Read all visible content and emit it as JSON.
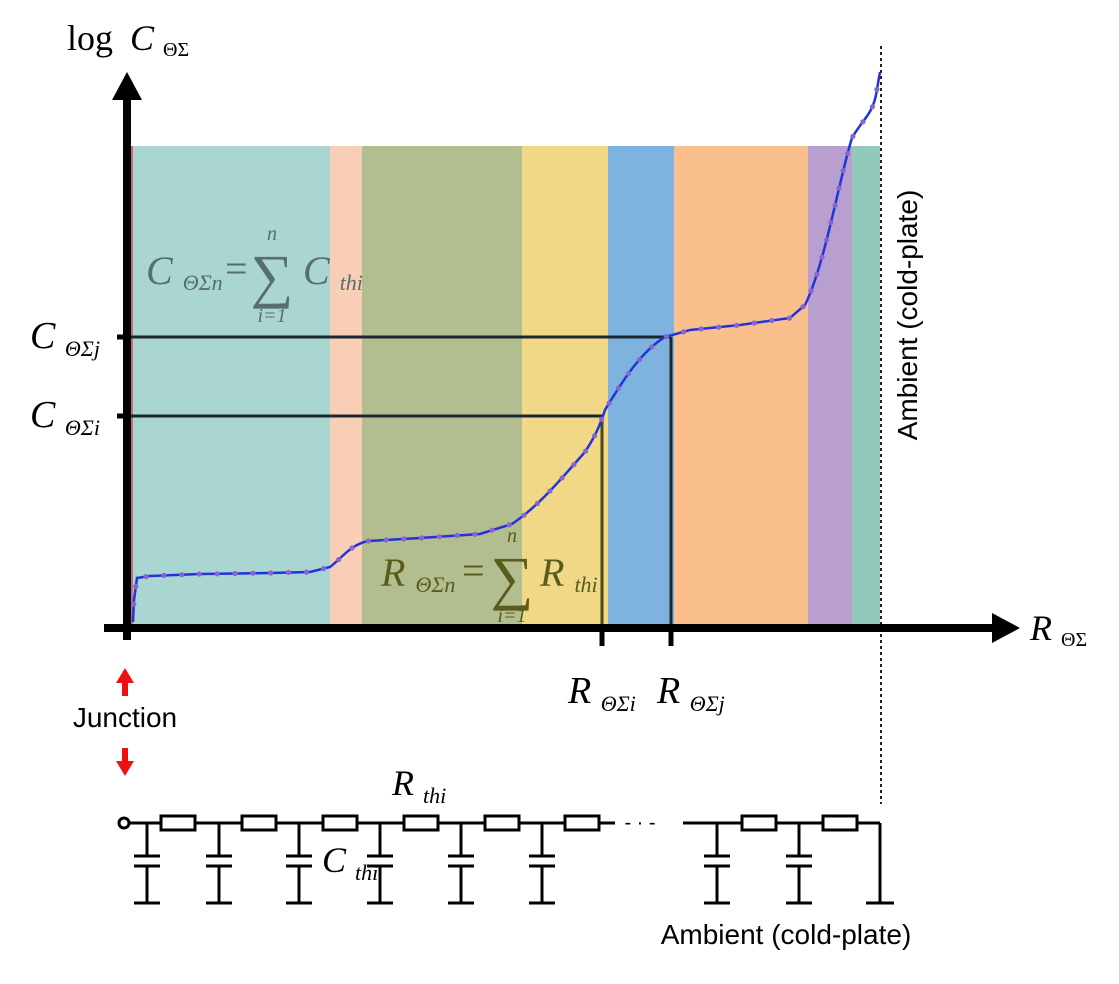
{
  "diagram": {
    "y_axis": {
      "log_word": "log",
      "symbol": "C",
      "subscript": "ΘΣ"
    },
    "x_axis": {
      "symbol": "R",
      "subscript": "ΘΣ"
    },
    "y_marks": [
      {
        "symbol": "C",
        "subscript": "ΘΣj"
      },
      {
        "symbol": "C",
        "subscript": "ΘΣi"
      }
    ],
    "x_marks": [
      {
        "symbol": "R",
        "subscript": "ΘΣi"
      },
      {
        "symbol": "R",
        "subscript": "ΘΣj"
      }
    ],
    "formula_capacitance": {
      "lhs_symbol": "C",
      "lhs_subscript": "ΘΣn",
      "equals": "=",
      "sum": "∑",
      "upper": "n",
      "lower": "i=1",
      "term_symbol": "C",
      "term_subscript": "thi"
    },
    "formula_resistance": {
      "lhs_symbol": "R",
      "lhs_subscript": "ΘΣn",
      "equals": "=",
      "sum": "∑",
      "upper": "n",
      "lower": "i=1",
      "term_symbol": "R",
      "term_subscript": "thi"
    },
    "ambient_vertical_label": "Ambient (cold-plate)",
    "junction_label": "Junction",
    "ladder": {
      "resistor_label": {
        "symbol": "R",
        "subscript": "thi"
      },
      "capacitor_label": {
        "symbol": "C",
        "subscript": "thi"
      },
      "ellipsis": "- · -",
      "ambient_label": "Ambient (cold-plate)"
    },
    "colors": {
      "band_colors": [
        "#cc6688",
        "#a9d6d0",
        "#f8cfb6",
        "#b2bd90",
        "#f1d886",
        "#7eb3e0",
        "#f9c08e",
        "#b89fcf",
        "#91c9ba"
      ],
      "curve": "#2233dd",
      "curve_dots": "#8866cc",
      "guide_lines": "#1c2630",
      "resistance_guide": "#4a4a14",
      "formula_c": "#586e6e",
      "formula_r": "#5a5c1c",
      "arrow_red": "#ee1111"
    }
  }
}
